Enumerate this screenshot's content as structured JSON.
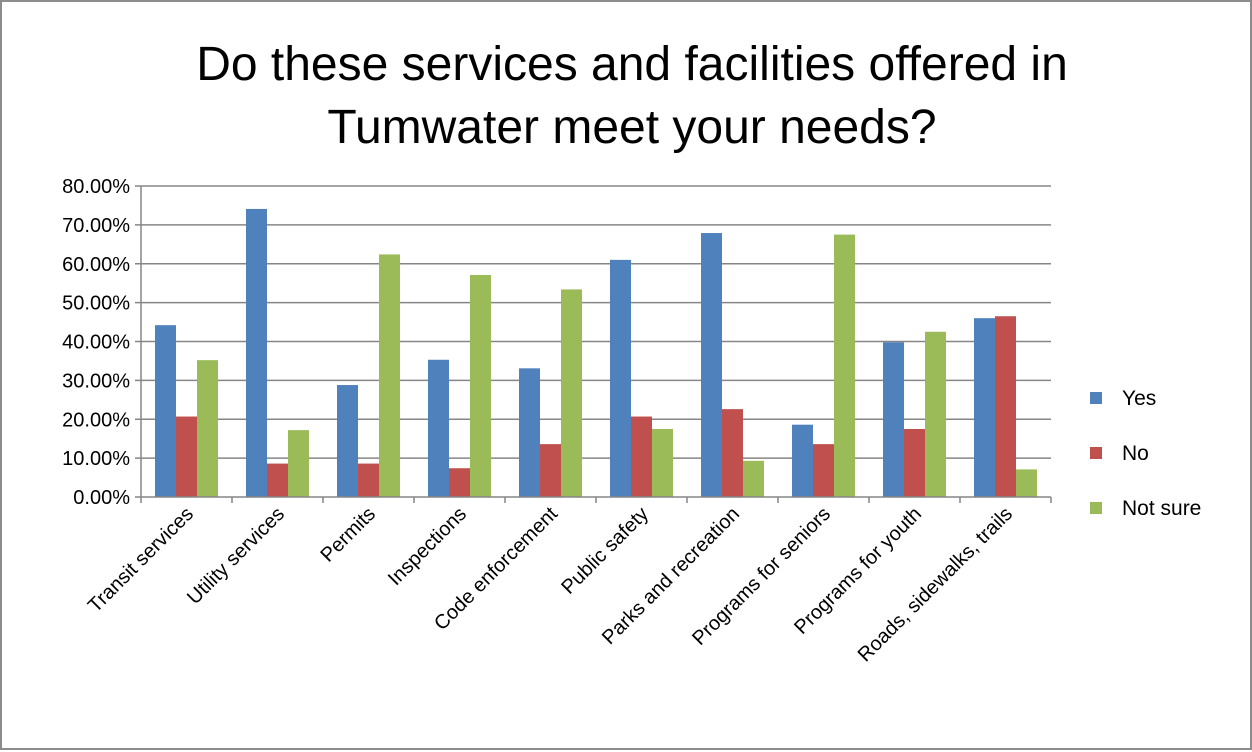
{
  "chart_data": {
    "type": "bar",
    "title_lines": [
      "Do these services and facilities offered in",
      "Tumwater meet your needs?"
    ],
    "categories": [
      "Transit services",
      "Utility services",
      "Permits",
      "Inspections",
      "Code enforcement",
      "Public safety",
      "Parks and recreation",
      "Programs for seniors",
      "Programs for youth",
      "Roads, sidewalks, trails"
    ],
    "series": [
      {
        "name": "Yes",
        "color": "#4f81bd",
        "values": [
          44.2,
          74.1,
          28.8,
          35.3,
          33.1,
          61.0,
          67.9,
          18.6,
          39.8,
          46.0
        ]
      },
      {
        "name": "No",
        "color": "#c0504d",
        "values": [
          20.7,
          8.6,
          8.6,
          7.4,
          13.6,
          20.7,
          22.6,
          13.6,
          17.5,
          46.5
        ]
      },
      {
        "name": "Not sure",
        "color": "#9bbb59",
        "values": [
          35.2,
          17.2,
          62.4,
          57.1,
          53.4,
          17.5,
          9.3,
          67.5,
          42.5,
          7.1
        ]
      }
    ],
    "ylim": [
      0,
      80
    ],
    "yticks": [
      0,
      10,
      20,
      30,
      40,
      50,
      60,
      70,
      80
    ],
    "ytick_labels": [
      "0.00%",
      "10.00%",
      "20.00%",
      "30.00%",
      "40.00%",
      "50.00%",
      "60.00%",
      "70.00%",
      "80.00%"
    ],
    "grid": true,
    "legend_position": "right"
  }
}
